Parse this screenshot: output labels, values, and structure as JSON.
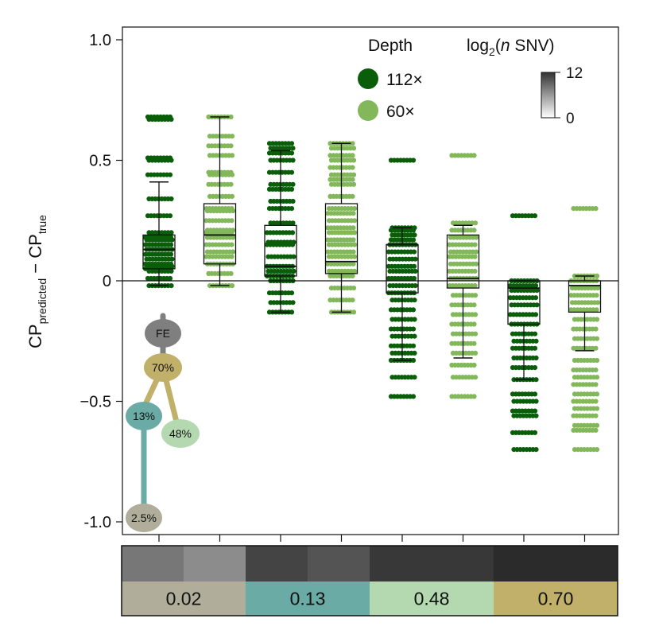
{
  "chart_data": {
    "type": "box",
    "ylabel_main": "CP",
    "ylabel_sub1": "predicted",
    "ylabel_minus": " − CP",
    "ylabel_sub2": "true",
    "ylim": [
      -1.0,
      1.0
    ],
    "yticks": [
      {
        "v": 1.0,
        "label": "1.0"
      },
      {
        "v": 0.5,
        "label": "0.5"
      },
      {
        "v": 0,
        "label": "0"
      },
      {
        "v": -0.5,
        "label": "−0.5"
      },
      {
        "v": -1.0,
        "label": "-1.0"
      }
    ],
    "reference_line": 0,
    "groups": [
      {
        "depth": "112×",
        "clone": "0.02",
        "min": -0.02,
        "q1": 0.05,
        "median": 0.13,
        "q3": 0.19,
        "max": 0.41,
        "points": [
          0.68,
          0.67,
          0.51,
          0.5,
          0.44,
          0.34,
          0.27,
          0.2,
          0.18,
          0.17,
          0.15,
          0.13,
          0.11,
          0.09,
          0.07,
          0.06,
          0.05,
          0.04,
          0.01,
          -0.02
        ]
      },
      {
        "depth": "60×",
        "clone": "0.02",
        "min": -0.02,
        "q1": 0.07,
        "median": 0.19,
        "q3": 0.32,
        "max": 0.68,
        "points": [
          0.68,
          0.6,
          0.56,
          0.52,
          0.45,
          0.44,
          0.4,
          0.35,
          0.3,
          0.29,
          0.25,
          0.21,
          0.2,
          0.18,
          0.15,
          0.12,
          0.1,
          0.07,
          0.03,
          -0.02
        ]
      },
      {
        "depth": "112×",
        "clone": "0.13",
        "min": -0.13,
        "q1": 0.02,
        "median": 0.06,
        "q3": 0.23,
        "max": 0.54,
        "points": [
          0.57,
          0.55,
          0.53,
          0.5,
          0.45,
          0.4,
          0.38,
          0.33,
          0.3,
          0.24,
          0.2,
          0.16,
          0.15,
          0.1,
          0.06,
          0.04,
          0.02,
          0.0,
          -0.05,
          -0.09,
          -0.13
        ]
      },
      {
        "depth": "60×",
        "clone": "0.13",
        "min": -0.13,
        "q1": 0.03,
        "median": 0.08,
        "q3": 0.32,
        "max": 0.57,
        "points": [
          0.57,
          0.55,
          0.52,
          0.5,
          0.47,
          0.44,
          0.42,
          0.4,
          0.35,
          0.3,
          0.28,
          0.25,
          0.22,
          0.2,
          0.17,
          0.15,
          0.12,
          0.1,
          0.07,
          0.04,
          0.02,
          -0.03,
          -0.08,
          -0.13
        ]
      },
      {
        "depth": "112×",
        "clone": "0.48",
        "min": -0.33,
        "q1": -0.05,
        "median": 0.15,
        "q3": 0.15,
        "max": 0.22,
        "points": [
          0.5,
          0.22,
          0.21,
          0.19,
          0.17,
          0.15,
          0.12,
          0.09,
          0.06,
          0.04,
          0.01,
          -0.02,
          -0.05,
          -0.08,
          -0.12,
          -0.16,
          -0.2,
          -0.23,
          -0.27,
          -0.3,
          -0.33,
          -0.4,
          -0.48
        ]
      },
      {
        "depth": "60×",
        "clone": "0.48",
        "min": -0.32,
        "q1": -0.03,
        "median": 0.01,
        "q3": 0.19,
        "max": 0.23,
        "points": [
          0.52,
          0.24,
          0.21,
          0.18,
          0.15,
          0.12,
          0.1,
          0.07,
          0.04,
          0.01,
          -0.02,
          -0.06,
          -0.1,
          -0.14,
          -0.18,
          -0.22,
          -0.26,
          -0.3,
          -0.35,
          -0.4,
          -0.48
        ]
      },
      {
        "depth": "112×",
        "clone": "0.70",
        "min": -0.41,
        "q1": -0.18,
        "median": -0.03,
        "q3": 0.0,
        "max": 0.0,
        "points": [
          0.27,
          0.0,
          -0.02,
          -0.04,
          -0.07,
          -0.1,
          -0.14,
          -0.18,
          -0.22,
          -0.25,
          -0.28,
          -0.32,
          -0.36,
          -0.41,
          -0.47,
          -0.5,
          -0.54,
          -0.56,
          -0.63,
          -0.7
        ]
      },
      {
        "depth": "60×",
        "clone": "0.70",
        "min": -0.29,
        "q1": -0.13,
        "median": -0.02,
        "q3": 0.0,
        "max": 0.02,
        "points": [
          0.3,
          0.02,
          0.0,
          -0.03,
          -0.06,
          -0.09,
          -0.12,
          -0.16,
          -0.2,
          -0.24,
          -0.28,
          -0.33,
          -0.37,
          -0.4,
          -0.43,
          -0.47,
          -0.5,
          -0.53,
          -0.56,
          -0.6,
          -0.62,
          -0.7
        ]
      }
    ],
    "legend": {
      "title": "Depth",
      "entries": [
        {
          "label": "112×",
          "color": "#0a5e0a"
        },
        {
          "label": "60×",
          "color": "#82b75a"
        }
      ]
    },
    "colorbar": {
      "title_prefix": "log",
      "title_sub": "2",
      "title_open": "(",
      "title_italic": "n",
      "title_suffix": " SNV)",
      "max_label": "12",
      "min_label": "0"
    },
    "tree": {
      "nodes": [
        {
          "label": "FE",
          "color": "#7f7f7f"
        },
        {
          "label": "70%",
          "color": "#c1b06a"
        },
        {
          "label": "13%",
          "color": "#6aaba6"
        },
        {
          "label": "48%",
          "color": "#b4d9b0"
        },
        {
          "label": "2.5%",
          "color": "#b0ae9b"
        }
      ]
    },
    "snv_grays": [
      "#777777",
      "#8c8c8c",
      "#444444",
      "#545454",
      "#383838",
      "#383838",
      "#2b2b2b",
      "#2b2b2b"
    ],
    "clones": [
      {
        "label": "0.02",
        "color": "#b0ae9b"
      },
      {
        "label": "0.13",
        "color": "#6aaba6"
      },
      {
        "label": "0.48",
        "color": "#b4d9b0"
      },
      {
        "label": "0.70",
        "color": "#c1b06a"
      }
    ]
  }
}
